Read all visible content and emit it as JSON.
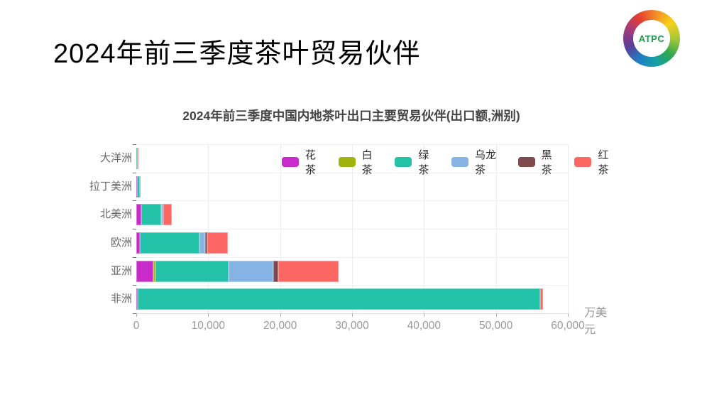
{
  "page": {
    "title": "2024年前三季度茶叶贸易伙伴",
    "logo": {
      "text": "ATPC"
    }
  },
  "chart": {
    "title": "2024年前三季度中国内地茶叶出口主要贸易伙伴(出口额,洲别)",
    "unit_label": "万美元"
  },
  "chart_data": {
    "type": "bar",
    "orientation": "horizontal-stacked",
    "title": "2024年前三季度中国内地茶叶出口主要贸易伙伴(出口额,洲别)",
    "xlabel": "万美元",
    "ylabel": "",
    "grid": true,
    "legend_position": "top-inside",
    "xlim": [
      0,
      60000
    ],
    "x_ticks": [
      0,
      10000,
      20000,
      30000,
      40000,
      50000,
      60000
    ],
    "x_tick_labels": [
      "0",
      "10,000",
      "20,000",
      "30,000",
      "40,000",
      "50,000",
      "60,000"
    ],
    "categories_top_to_bottom": [
      "大洋洲",
      "拉丁美洲",
      "北美洲",
      "欧洲",
      "亚洲",
      "非洲"
    ],
    "series": [
      {
        "name": "花茶",
        "color": "#C92BCB",
        "values": [
          0,
          100,
          700,
          500,
          2400,
          200
        ]
      },
      {
        "name": "白茶",
        "color": "#9FB40F",
        "values": [
          0,
          0,
          0,
          0,
          300,
          0
        ]
      },
      {
        "name": "绿茶",
        "color": "#23C1A7",
        "values": [
          60,
          350,
          2800,
          8300,
          10100,
          56000
        ]
      },
      {
        "name": "乌龙茶",
        "color": "#85B3E3",
        "values": [
          0,
          0,
          300,
          800,
          6200,
          0
        ]
      },
      {
        "name": "黑茶",
        "color": "#7E4A4C",
        "values": [
          0,
          0,
          0,
          300,
          700,
          0
        ]
      },
      {
        "name": "红茶",
        "color": "#FC6663",
        "values": [
          160,
          80,
          1100,
          2800,
          8400,
          300
        ]
      }
    ]
  }
}
